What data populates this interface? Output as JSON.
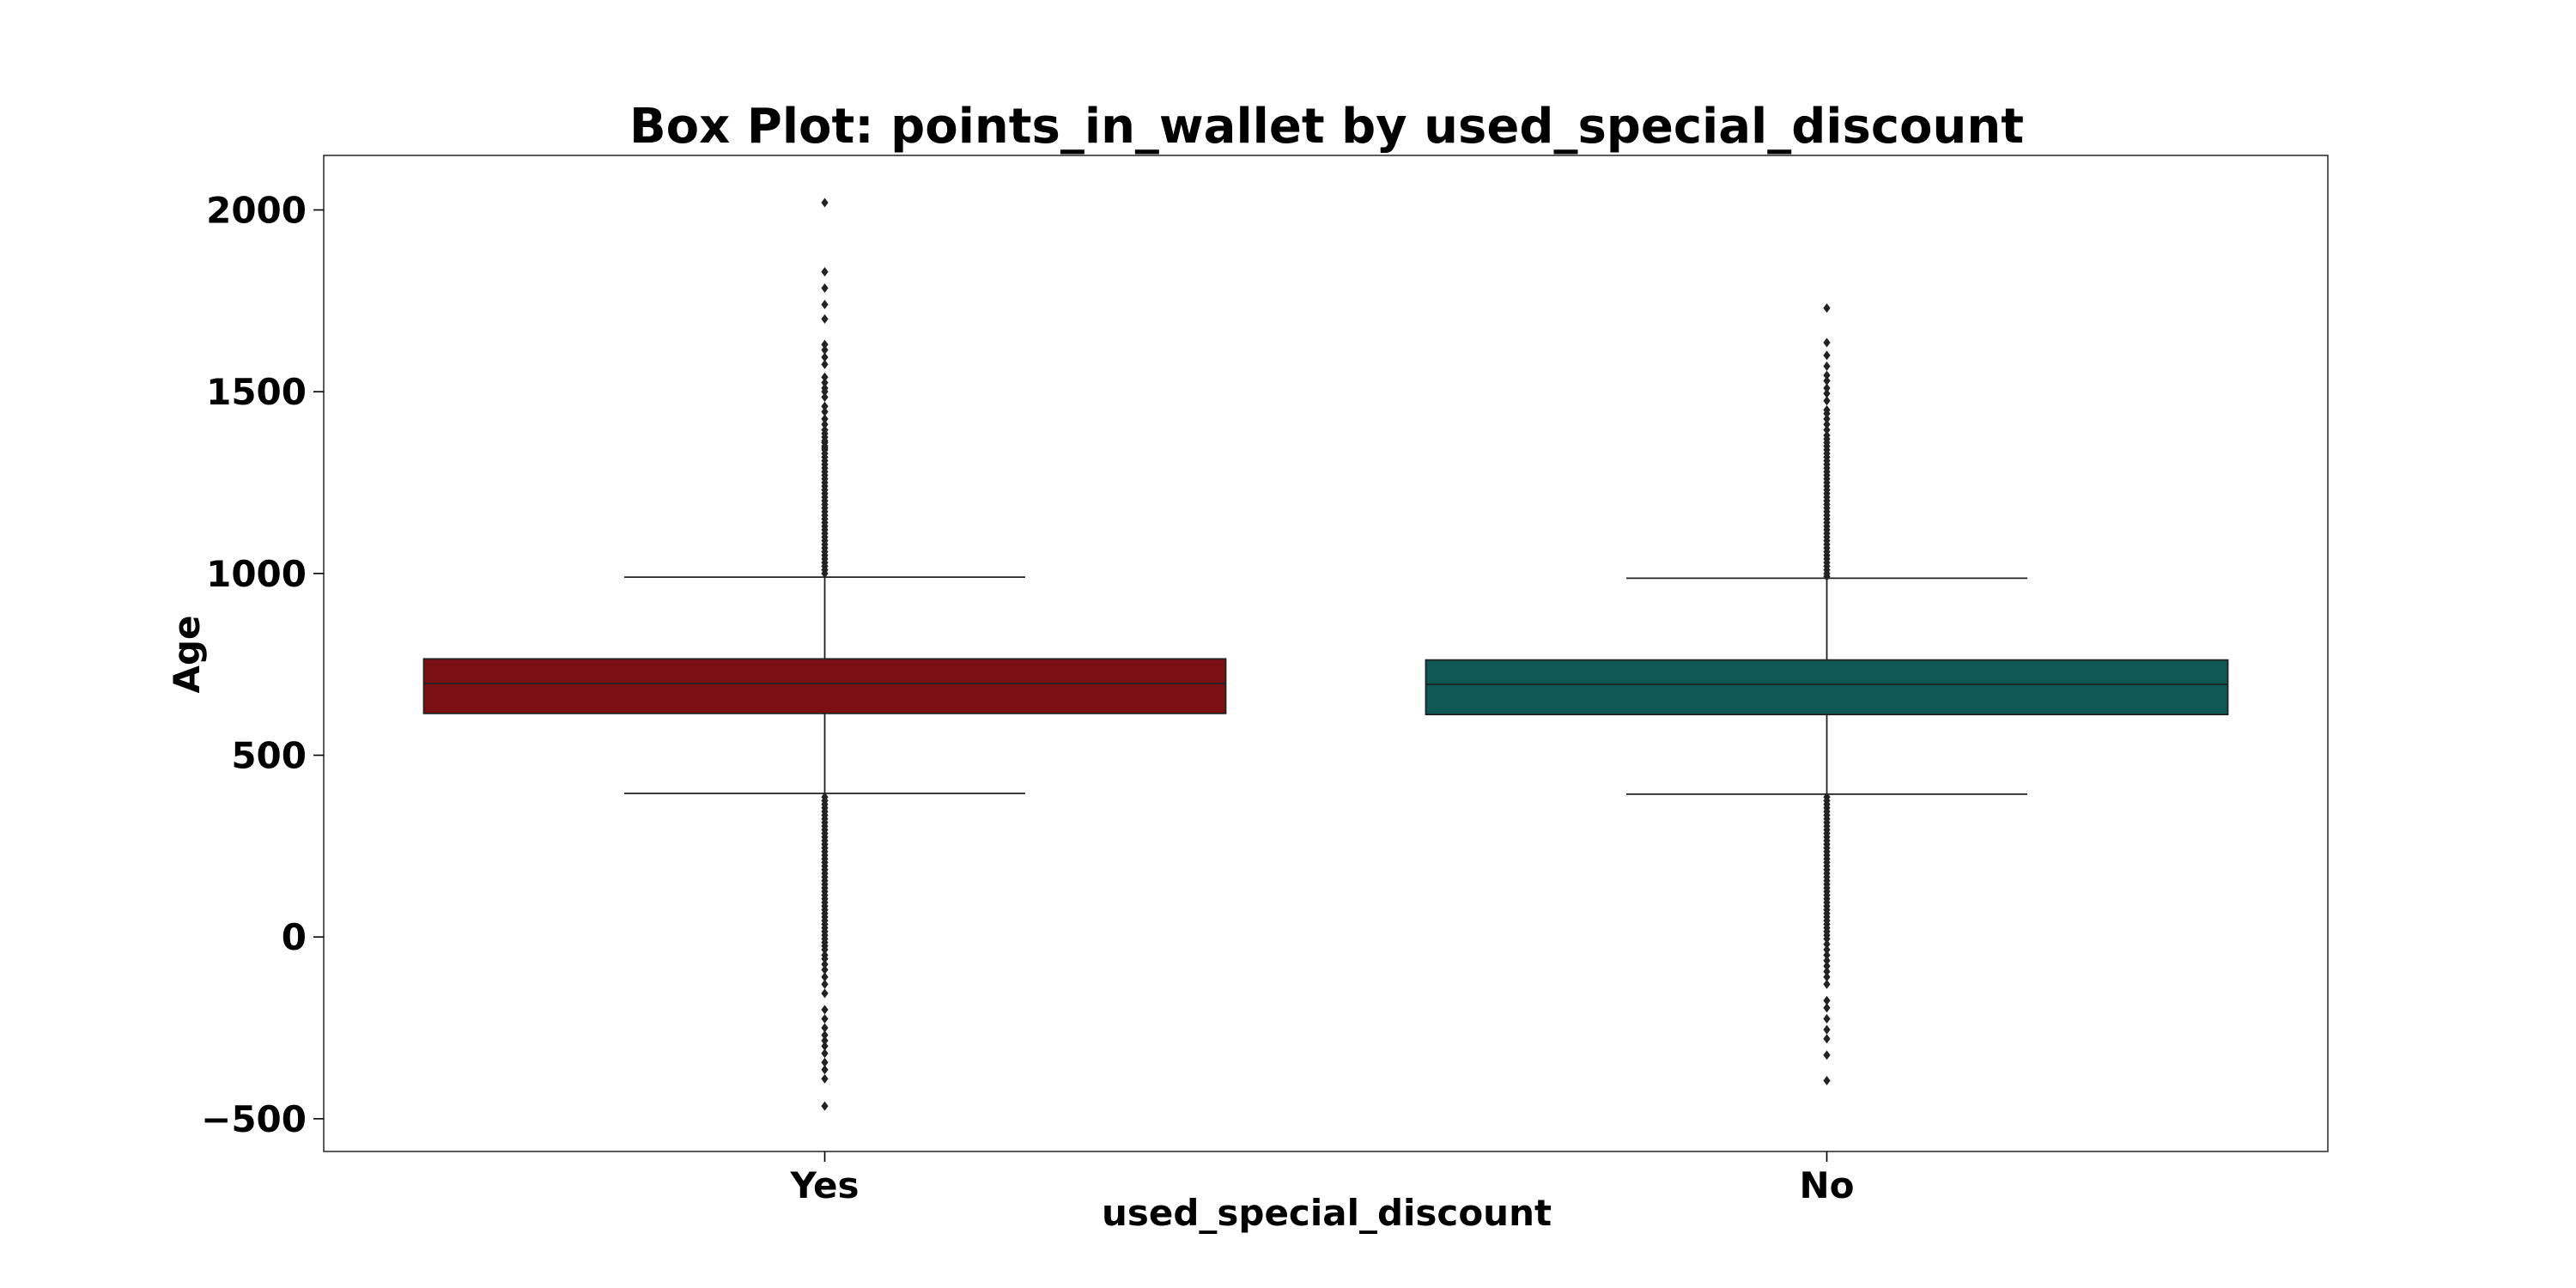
{
  "chart_data": {
    "type": "box",
    "title": "Box Plot: points_in_wallet by used_special_discount",
    "xlabel": "used_special_discount",
    "ylabel": "Age",
    "ylim": [
      -590,
      2150
    ],
    "yticks": [
      -500,
      0,
      500,
      1000,
      1500,
      2000
    ],
    "ytick_labels": [
      "−500",
      "0",
      "500",
      "1000",
      "1500",
      "2000"
    ],
    "grid": false,
    "categories": [
      "Yes",
      "No"
    ],
    "series": [
      {
        "category": "Yes",
        "color": "#7a1013",
        "whisker_low": 395,
        "q1": 615,
        "median": 697,
        "q3": 765,
        "whisker_high": 990,
        "outliers": [
          2020,
          1830,
          1785,
          1740,
          1700,
          1630,
          1615,
          1595,
          1575,
          1540,
          1525,
          1510,
          1500,
          1485,
          1460,
          1445,
          1425,
          1410,
          1395,
          1385,
          1375,
          1365,
          1360,
          1350,
          1345,
          1340,
          1330,
          1320,
          1310,
          1300,
          1290,
          1280,
          1270,
          1260,
          1250,
          1240,
          1230,
          1220,
          1210,
          1200,
          1190,
          1180,
          1170,
          1160,
          1150,
          1140,
          1130,
          1120,
          1110,
          1100,
          1090,
          1080,
          1070,
          1060,
          1050,
          1040,
          1030,
          1020,
          1010,
          1000,
          385,
          375,
          365,
          355,
          345,
          335,
          325,
          315,
          305,
          295,
          285,
          275,
          265,
          255,
          245,
          235,
          225,
          215,
          205,
          195,
          185,
          175,
          165,
          155,
          145,
          135,
          125,
          115,
          105,
          95,
          85,
          75,
          65,
          55,
          45,
          35,
          25,
          15,
          5,
          -5,
          -15,
          -25,
          -35,
          -50,
          -60,
          -75,
          -90,
          -110,
          -130,
          -155,
          -200,
          -225,
          -250,
          -270,
          -285,
          -300,
          -320,
          -345,
          -365,
          -390,
          -465
        ]
      },
      {
        "category": "No",
        "color": "#0f5856",
        "whisker_low": 393,
        "q1": 612,
        "median": 695,
        "q3": 762,
        "whisker_high": 987,
        "outliers": [
          1730,
          1635,
          1600,
          1570,
          1545,
          1530,
          1510,
          1495,
          1475,
          1450,
          1440,
          1425,
          1410,
          1395,
          1380,
          1370,
          1360,
          1350,
          1340,
          1330,
          1320,
          1310,
          1300,
          1290,
          1280,
          1270,
          1260,
          1250,
          1240,
          1230,
          1220,
          1210,
          1200,
          1190,
          1180,
          1170,
          1160,
          1150,
          1140,
          1130,
          1120,
          1110,
          1100,
          1090,
          1080,
          1070,
          1060,
          1050,
          1040,
          1030,
          1020,
          1010,
          1000,
          992,
          385,
          375,
          365,
          355,
          345,
          335,
          325,
          315,
          305,
          295,
          285,
          275,
          265,
          255,
          245,
          235,
          225,
          215,
          205,
          195,
          185,
          175,
          165,
          155,
          145,
          135,
          125,
          115,
          105,
          95,
          85,
          75,
          65,
          55,
          45,
          35,
          25,
          15,
          5,
          -5,
          -20,
          -35,
          -50,
          -65,
          -80,
          -95,
          -110,
          -130,
          -175,
          -195,
          -225,
          -255,
          -280,
          -325,
          -395
        ]
      }
    ]
  }
}
